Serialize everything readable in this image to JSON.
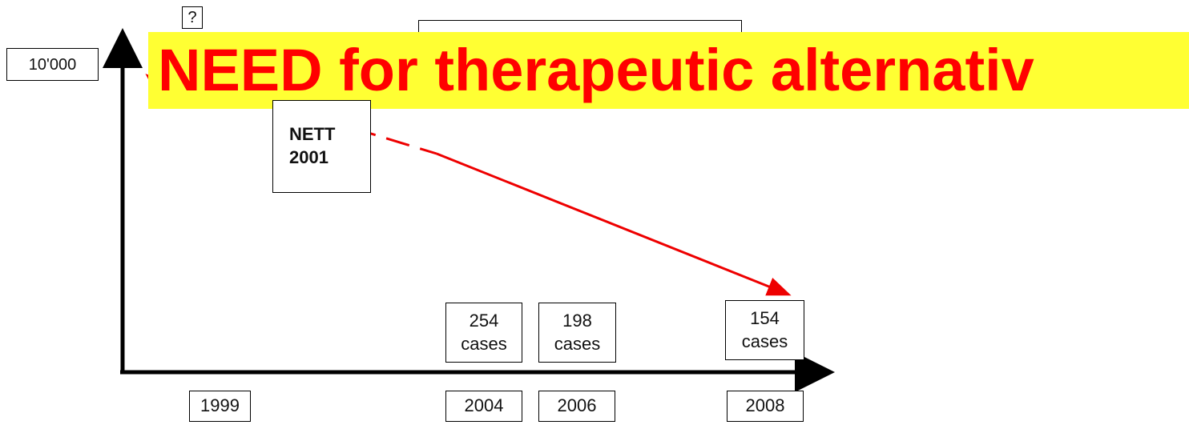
{
  "question": "?",
  "y_axis_label": "10'000",
  "banner": "NEED for therapeutic alternativ",
  "study": {
    "name": "NETT",
    "year": "2001"
  },
  "cases": [
    {
      "count": 254,
      "unit": "cases"
    },
    {
      "count": 198,
      "unit": "cases"
    },
    {
      "count": 154,
      "unit": "cases"
    }
  ],
  "years": [
    1999,
    2004,
    2006,
    2008
  ]
}
